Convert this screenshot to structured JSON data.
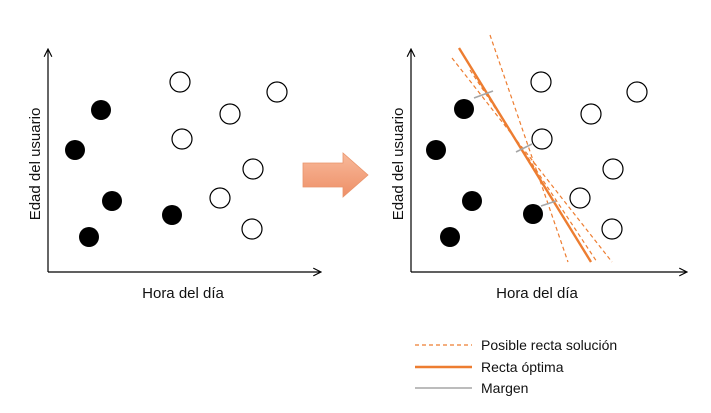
{
  "left_panel": {
    "x_axis_label": "Hora del día",
    "y_axis_label": "Edad del usuario"
  },
  "right_panel": {
    "x_axis_label": "Hora del día",
    "y_axis_label": "Edad del usuario"
  },
  "legend": {
    "possible_line_label": "Posible recta solución",
    "optimal_line_label": "Recta óptima",
    "margin_label": "Margen"
  },
  "colors": {
    "filled_point": "#000000",
    "open_point_stroke": "#000000",
    "line_orange": "#ED7D31",
    "margin_gray": "#A6A6A6",
    "arrow_fill": "#F4A582",
    "axis": "#000000"
  }
}
